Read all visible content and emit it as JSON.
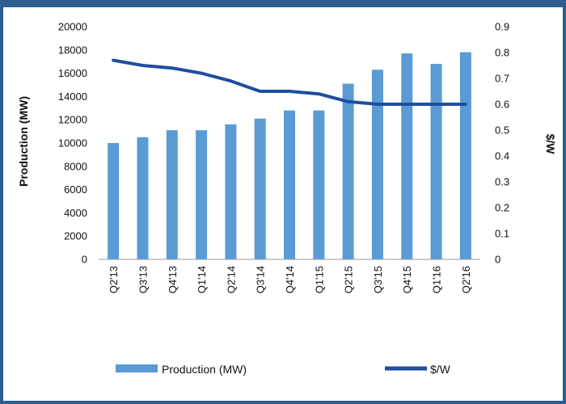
{
  "chart_data": {
    "type": "bar",
    "categories": [
      "Q2'13",
      "Q3'13",
      "Q4'13",
      "Q1'14",
      "Q2'14",
      "Q3'14",
      "Q4'14",
      "Q1'15",
      "Q2'15",
      "Q3'15",
      "Q4'15",
      "Q1'16",
      "Q2'16"
    ],
    "series": [
      {
        "name": "Production (MW)",
        "type": "bar",
        "axis": "left",
        "color": "#5b9bd5",
        "values": [
          10000,
          10500,
          11100,
          11100,
          11600,
          12100,
          12800,
          12800,
          15100,
          16300,
          17700,
          16800,
          17800
        ]
      },
      {
        "name": "$/W",
        "type": "line",
        "axis": "right",
        "color": "#1f4e9e",
        "values": [
          0.77,
          0.75,
          0.74,
          0.72,
          0.69,
          0.65,
          0.65,
          0.64,
          0.61,
          0.6,
          0.6,
          0.6,
          0.6
        ]
      }
    ],
    "y_left": {
      "label": "Production (MW)",
      "ylim": [
        0,
        20000
      ],
      "ticks": [
        "0",
        "2000",
        "4000",
        "6000",
        "8000",
        "10000",
        "12000",
        "14000",
        "16000",
        "18000",
        "20000"
      ]
    },
    "y_right": {
      "label": "$/W",
      "ylim": [
        0,
        0.9
      ],
      "ticks": [
        "0",
        "0.1",
        "0.2",
        "0.3",
        "0.4",
        "0.5",
        "0.6",
        "0.7",
        "0.8",
        "0.9"
      ]
    },
    "grid": false,
    "legend": {
      "placement": "bottom",
      "items": [
        {
          "label": "Production (MW)",
          "marker": "bar"
        },
        {
          "label": "$/W",
          "marker": "line"
        }
      ]
    }
  }
}
